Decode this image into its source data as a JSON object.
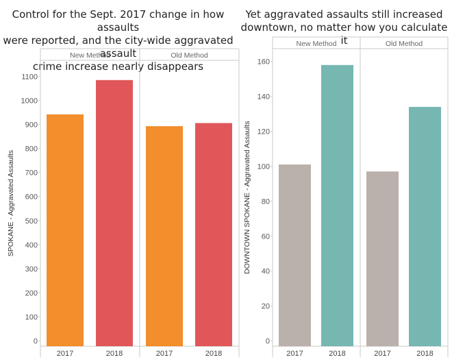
{
  "chart_data": [
    {
      "type": "bar",
      "title": "Control for the Sept. 2017 change in how assaults\nwere reported, and the city-wide aggravated assault\ncrime increase nearly disappears",
      "ylabel": "SPOKANE - Aggravated Assaults",
      "ylim": [
        0,
        1150
      ],
      "yticks": [
        0,
        100,
        200,
        300,
        400,
        500,
        600,
        700,
        800,
        900,
        1000,
        1100
      ],
      "grid": false,
      "panels": [
        {
          "label": "New Method",
          "categories": [
            "2017",
            "2018"
          ],
          "values": [
            942,
            1085
          ],
          "colors": [
            "#f28e2b",
            "#e15759"
          ]
        },
        {
          "label": "Old Method",
          "categories": [
            "2017",
            "2018"
          ],
          "values": [
            893,
            906
          ],
          "colors": [
            "#f28e2b",
            "#e15759"
          ]
        }
      ]
    },
    {
      "type": "bar",
      "title": "Yet aggravated assaults  still increased\ndowntown, no matter how you calculate it",
      "ylabel": "DOWNTOWN SPOKANE - Aggravated Assaults",
      "ylim": [
        0,
        165
      ],
      "yticks": [
        0,
        20,
        40,
        60,
        80,
        100,
        120,
        140,
        160
      ],
      "grid": false,
      "panels": [
        {
          "label": "New Method",
          "categories": [
            "2017",
            "2018"
          ],
          "values": [
            101,
            158
          ],
          "colors": [
            "#bab0ac",
            "#76b7b2"
          ]
        },
        {
          "label": "Old Method",
          "categories": [
            "2017",
            "2018"
          ],
          "values": [
            97,
            134
          ],
          "colors": [
            "#bab0ac",
            "#76b7b2"
          ]
        }
      ]
    }
  ]
}
